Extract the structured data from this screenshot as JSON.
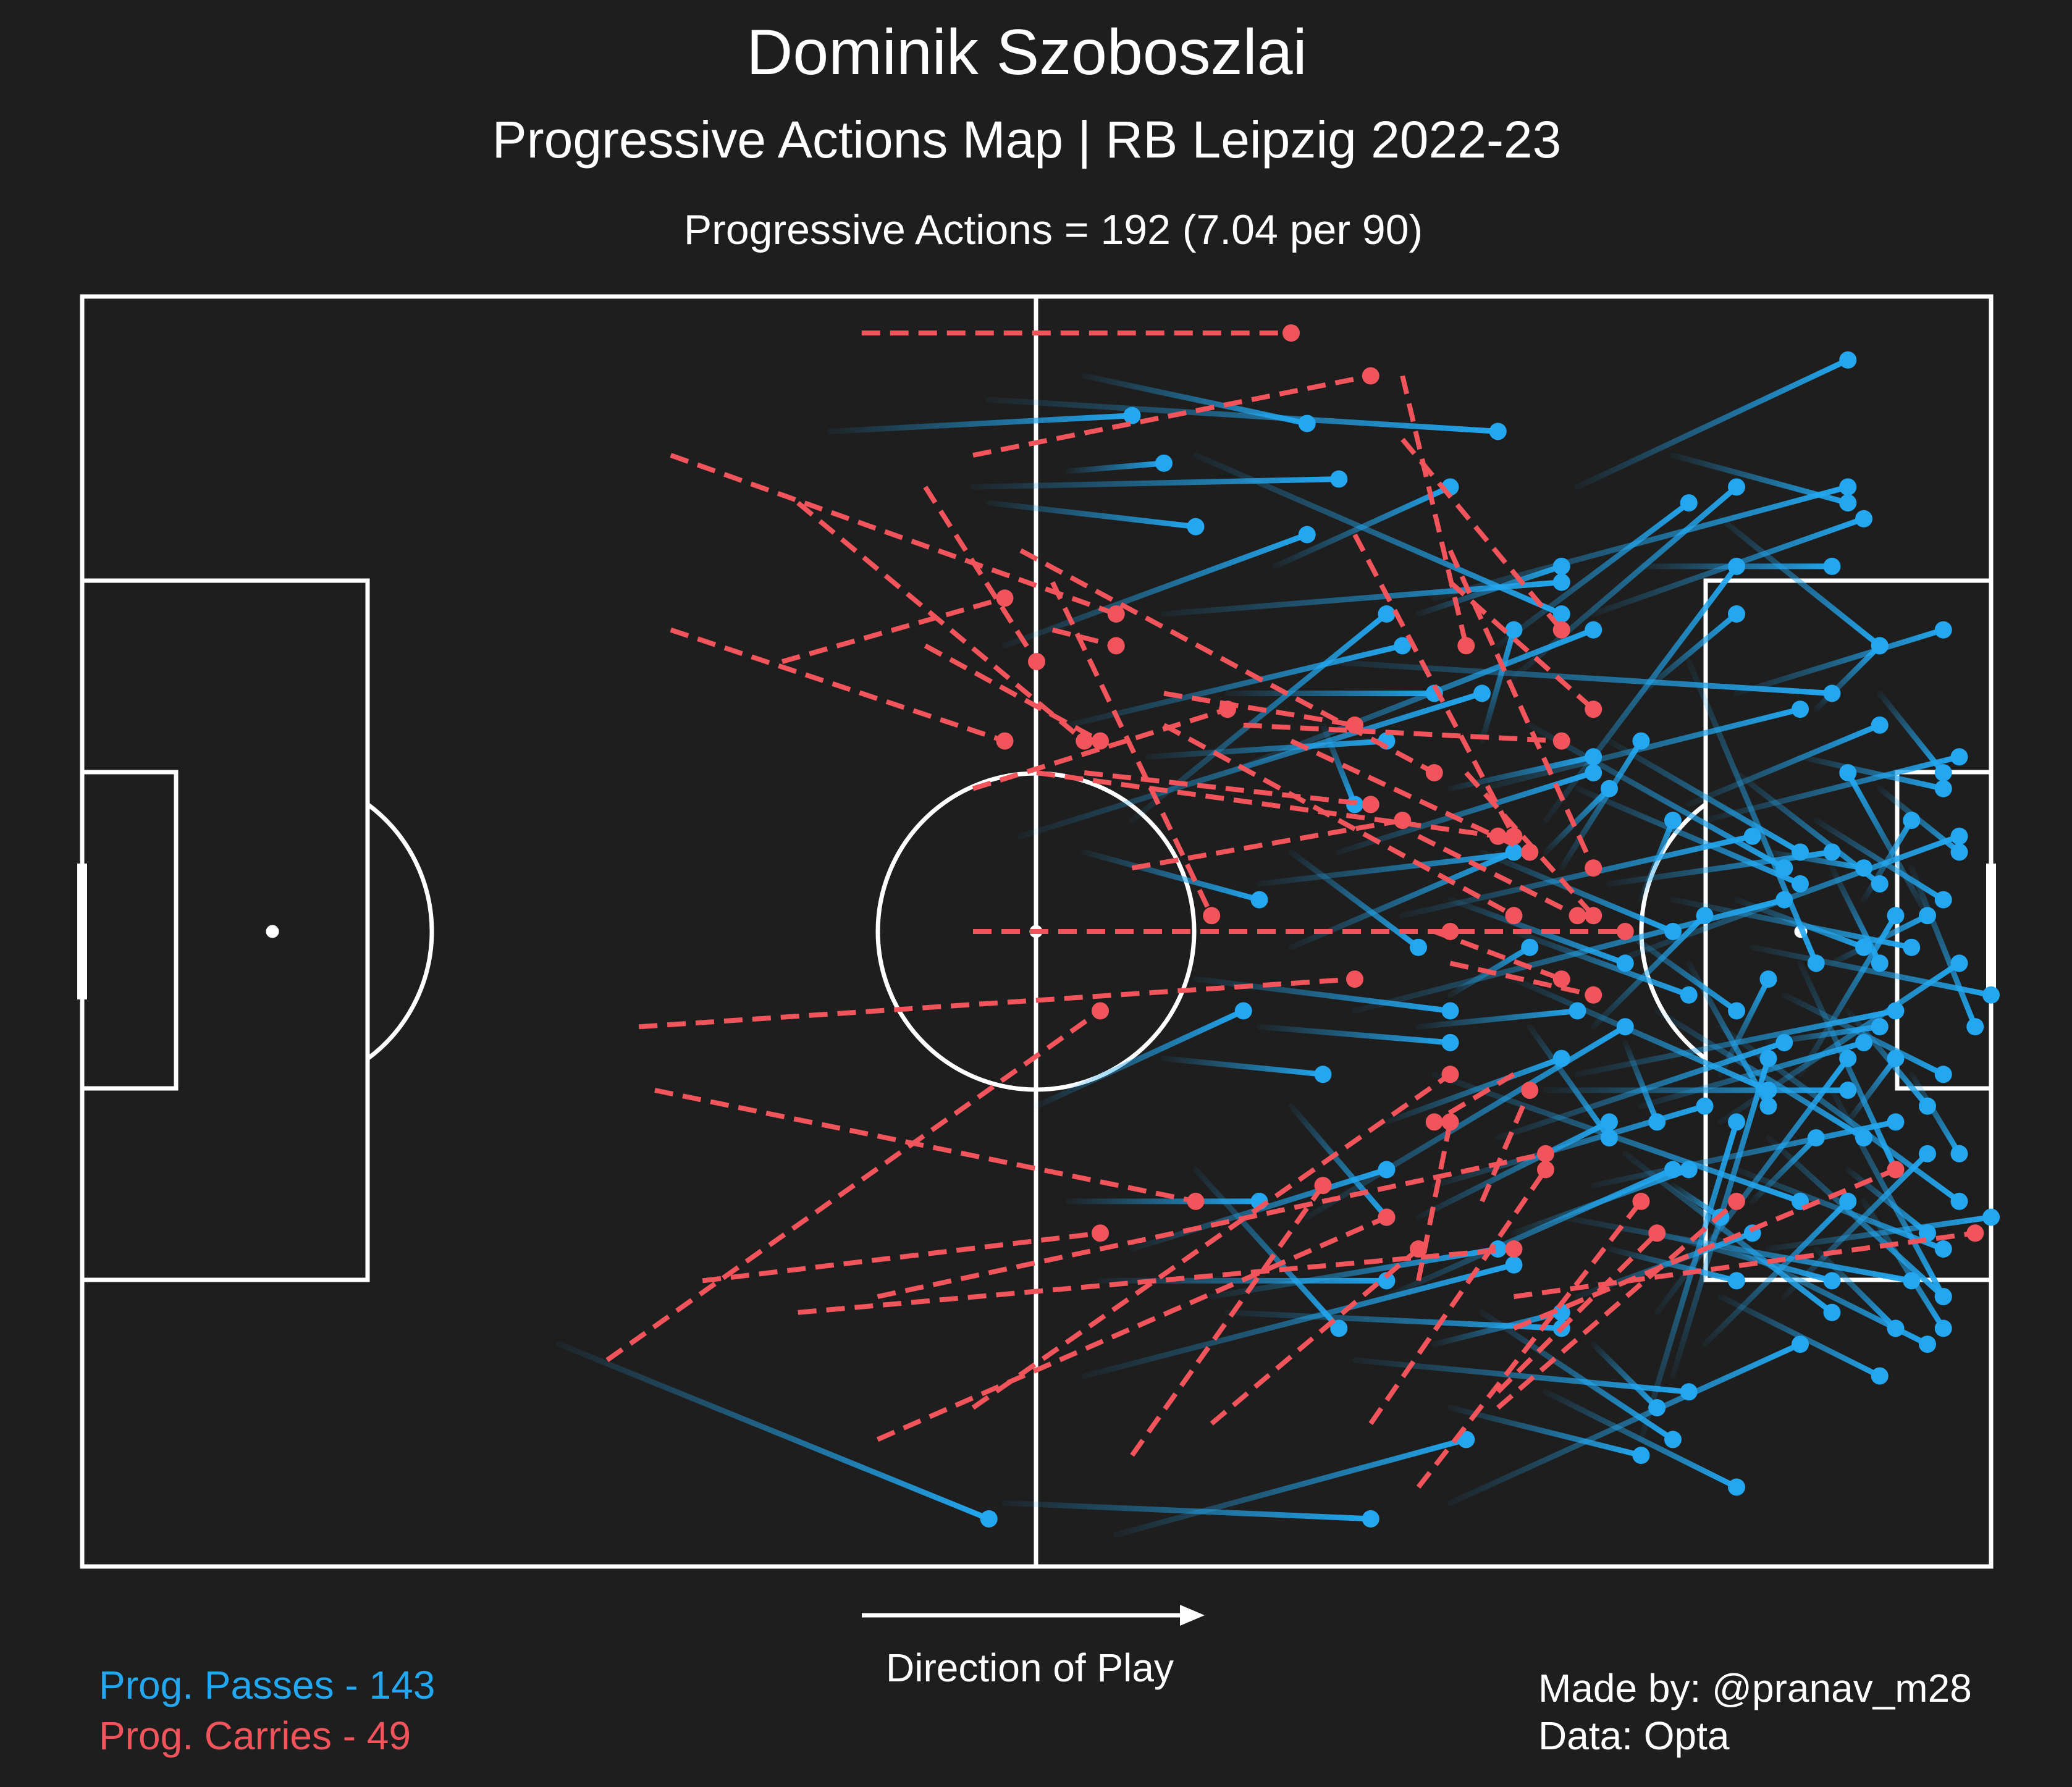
{
  "header": {
    "title": "Dominik Szoboszlai",
    "subtitle": "Progressive Actions Map | RB Leipzig 2022-23",
    "summary": "Progressive Actions = 192 (7.04 per 90)"
  },
  "direction_label": "Direction of Play",
  "legend": {
    "passes_label": "Prog. Passes - 143",
    "carries_label": "Prog. Carries - 49"
  },
  "credits": {
    "made_by": "Made by: @pranav_m28",
    "data_source": "Data: Opta"
  },
  "colors": {
    "background": "#1e1e1e",
    "lines": "#ffffff",
    "pass": "#22a7f0",
    "carry": "#f2545b"
  },
  "chart_data": {
    "type": "scatter",
    "description_axes": "pitch coordinates, x 0-120 (attacking direction left to right), y 0-80",
    "xlim": [
      0,
      120
    ],
    "ylim": [
      0,
      80
    ],
    "series": [
      {
        "name": "Prog. Passes - 143",
        "kind": "pass",
        "actions": [
          [
            57,
            6.5,
            89,
            8.5
          ],
          [
            47,
            8.5,
            66,
            7.5
          ],
          [
            62,
            11,
            68,
            10.5
          ],
          [
            56,
            12,
            79,
            11.5
          ],
          [
            63,
            5,
            77,
            8
          ],
          [
            57,
            13,
            70,
            14.5
          ],
          [
            68,
            20,
            93,
            18
          ],
          [
            70,
            10,
            93,
            20
          ],
          [
            58,
            22,
            77,
            15
          ],
          [
            62,
            27,
            83,
            22
          ],
          [
            66,
            33,
            82,
            20
          ],
          [
            72,
            30,
            95,
            21
          ],
          [
            78,
            23,
            110,
            25
          ],
          [
            85,
            19,
            111,
            12
          ],
          [
            94,
            12,
            111,
            4
          ],
          [
            92,
            33,
            104,
            17
          ],
          [
            98,
            25,
            104,
            20
          ],
          [
            79,
            35,
            95,
            30
          ],
          [
            83,
            39,
            105,
            34
          ],
          [
            88,
            31,
            108,
            26
          ],
          [
            74,
            37,
            91,
            35
          ],
          [
            80,
            45,
            107,
            38
          ],
          [
            96,
            42,
            118,
            34
          ],
          [
            101,
            32,
            113,
            27
          ],
          [
            104,
            25,
            117,
            21
          ],
          [
            59,
            34,
            88,
            25
          ],
          [
            90,
            43,
            106,
            50
          ],
          [
            98,
            51,
            112,
            47
          ],
          [
            100,
            38,
            115,
            41
          ],
          [
            105,
            41,
            120,
            44
          ],
          [
            95,
            56,
            114,
            52
          ],
          [
            103,
            46,
            118,
            57
          ],
          [
            106,
            53,
            117,
            63
          ],
          [
            85,
            49,
            108,
            57
          ],
          [
            93,
            58,
            115,
            62
          ],
          [
            106,
            60,
            120,
            58
          ],
          [
            110,
            50,
            117,
            63
          ],
          [
            99,
            64,
            111,
            48
          ],
          [
            98,
            72,
            104,
            52
          ],
          [
            82,
            63,
            100,
            55
          ],
          [
            77,
            58,
            97,
            46
          ],
          [
            72,
            64,
            93,
            65
          ],
          [
            65,
            78,
            87,
            72
          ],
          [
            86,
            76,
            108,
            66
          ],
          [
            58,
            76,
            81,
            77
          ],
          [
            30,
            66,
            57,
            77
          ],
          [
            63,
            68,
            90,
            61
          ],
          [
            88,
            64,
            100,
            72
          ],
          [
            97,
            54,
            110,
            64
          ],
          [
            102,
            59,
            116,
            66
          ],
          [
            112,
            57,
            117,
            65
          ],
          [
            108,
            49,
            114,
            39
          ],
          [
            109,
            33,
            117,
            38
          ],
          [
            116,
            39,
            111,
            30
          ],
          [
            113,
            25,
            117,
            30
          ],
          [
            101,
            23,
            109,
            42
          ],
          [
            96,
            28,
            108,
            35
          ],
          [
            88,
            35,
            100,
            40
          ],
          [
            84,
            46,
            94,
            45
          ],
          [
            76,
            51,
            82,
            58
          ],
          [
            70,
            55,
            79,
            65
          ],
          [
            64,
            62,
            82,
            62
          ],
          [
            74,
            46,
            86,
            47
          ],
          [
            91,
            46,
            96,
            53
          ],
          [
            93,
            36,
            98,
            28
          ],
          [
            111,
            45,
            116,
            51
          ],
          [
            111,
            55,
            116,
            59
          ],
          [
            108,
            42,
            114,
            55
          ],
          [
            115,
            36,
            119,
            46
          ],
          [
            99,
            45,
            112,
            53
          ],
          [
            91,
            27,
            107,
            36
          ],
          [
            95,
            20,
            112,
            14
          ],
          [
            90,
            24,
            104,
            12
          ],
          [
            86,
            38,
            97,
            42
          ],
          [
            94,
            63,
            105,
            59
          ],
          [
            100,
            68,
            106,
            48
          ],
          [
            102,
            66,
            111,
            57
          ],
          [
            103,
            52,
            118,
            42
          ],
          [
            107,
            44,
            117,
            49
          ],
          [
            104,
            38,
            112,
            41
          ],
          [
            108,
            29,
            117,
            31
          ],
          [
            110,
            36,
            113,
            42
          ],
          [
            97,
            40,
            104,
            45
          ],
          [
            92,
            50,
            111,
            50
          ],
          [
            85,
            56,
            102,
            51
          ],
          [
            70,
            43,
            86,
            45
          ],
          [
            60,
            51,
            73,
            45
          ],
          [
            67,
            29,
            82,
            28
          ],
          [
            75,
            17,
            86,
            12
          ],
          [
            98,
            17,
            110,
            17
          ],
          [
            103,
            14,
            113,
            22
          ],
          [
            100,
            10,
            111,
            13
          ],
          [
            89,
            22,
            101,
            13
          ],
          [
            96,
            37,
            110,
            35
          ],
          [
            102,
            33,
            118,
            29
          ],
          [
            109,
            26,
            113,
            22
          ],
          [
            106,
            35,
            112,
            36
          ],
          [
            113,
            31,
            118,
            35
          ],
          [
            115,
            49,
            118,
            54
          ],
          [
            107,
            63,
            116,
            54
          ],
          [
            86,
            70,
            98,
            73
          ],
          [
            92,
            69,
            104,
            75
          ],
          [
            80,
            67,
            101,
            69
          ],
          [
            71,
            63,
            89,
            60
          ],
          [
            66,
            60,
            82,
            55
          ],
          [
            84,
            58,
            96,
            52
          ],
          [
            89,
            53,
            107,
            47
          ],
          [
            94,
            49,
            114,
            45
          ],
          [
            99,
            59,
            110,
            62
          ],
          [
            104,
            55,
            117,
            60
          ],
          [
            94,
            31,
            108,
            37
          ],
          [
            90,
            40,
            101,
            44
          ],
          [
            86,
            31,
            95,
            29
          ],
          [
            84,
            20,
            93,
            17
          ],
          [
            72,
            25,
            85,
            25
          ],
          [
            63,
            35,
            74,
            38
          ],
          [
            76,
            41,
            90,
            35
          ],
          [
            82,
            52,
            93,
            48
          ],
          [
            90,
            59,
            101,
            55
          ],
          [
            95,
            46,
            102,
            39
          ],
          [
            101,
            42,
            106,
            51
          ],
          [
            106,
            47,
            113,
            46
          ],
          [
            110,
            42,
            116,
            39
          ],
          [
            104,
            30,
            113,
            37
          ],
          [
            96,
            60,
            104,
            62
          ],
          [
            103,
            63,
            113,
            68
          ],
          [
            109,
            60,
            114,
            65
          ],
          [
            111,
            52,
            114,
            48
          ],
          [
            112,
            38,
            115,
            33
          ],
          [
            98,
            38,
            100,
            33
          ],
          [
            88,
            28,
            90,
            21
          ],
          [
            78,
            27,
            80,
            32
          ],
          [
            76,
            35,
            84,
            41
          ],
          [
            68,
            48,
            78,
            49
          ],
          [
            62,
            57,
            74,
            57
          ],
          [
            86,
            44,
            91,
            41
          ],
          [
            92,
            35,
            96,
            31
          ],
          [
            97,
            47,
            99,
            52
          ],
          [
            100,
            56,
            103,
            58
          ],
          [
            105,
            57,
            109,
            53
          ],
          [
            103,
            49,
            106,
            43
          ],
          [
            95,
            66,
            99,
            70
          ],
          [
            85,
            66,
            93,
            64
          ]
        ]
      },
      {
        "name": "Prog. Carries - 49",
        "kind": "carry",
        "actions": [
          [
            49,
            2.3,
            76,
            2.3
          ],
          [
            56,
            10,
            81,
            5
          ],
          [
            37,
            10,
            65,
            20
          ],
          [
            45,
            13,
            63,
            28
          ],
          [
            53,
            12,
            60,
            23
          ],
          [
            59,
            16,
            85,
            30
          ],
          [
            61,
            18,
            71,
            39
          ],
          [
            37,
            21,
            58,
            28
          ],
          [
            44,
            23,
            58,
            19
          ],
          [
            61,
            21,
            65,
            22
          ],
          [
            68,
            25,
            80,
            27
          ],
          [
            73,
            27,
            93,
            28
          ],
          [
            83,
            5,
            87,
            22
          ],
          [
            83,
            9,
            93,
            21
          ],
          [
            80,
            15,
            90,
            34
          ],
          [
            86,
            18,
            95,
            26
          ],
          [
            86,
            16,
            95,
            36
          ],
          [
            87,
            30,
            95,
            39
          ],
          [
            68,
            27,
            90,
            39
          ],
          [
            63,
            30,
            81,
            32
          ],
          [
            66,
            36,
            83,
            33
          ],
          [
            56,
            40,
            86,
            40
          ],
          [
            35,
            46,
            80,
            43
          ],
          [
            36,
            50,
            70,
            57
          ],
          [
            39,
            62,
            64,
            59
          ],
          [
            45,
            64,
            90,
            60
          ],
          [
            33,
            67,
            64,
            45
          ],
          [
            50,
            63,
            92,
            54
          ],
          [
            50,
            72,
            82,
            58
          ],
          [
            56,
            70,
            86,
            49
          ],
          [
            56,
            40,
            97,
            40
          ],
          [
            71,
            71,
            84,
            60
          ],
          [
            66,
            73,
            78,
            56
          ],
          [
            81,
            71,
            92,
            55
          ],
          [
            84,
            75,
            98,
            57
          ],
          [
            89,
            70,
            104,
            57
          ],
          [
            90,
            65,
            114,
            55
          ],
          [
            90,
            63,
            119,
            59
          ],
          [
            89,
            69,
            99,
            59
          ],
          [
            90,
            49,
            85,
            52
          ],
          [
            88,
            57,
            91,
            50
          ],
          [
            84,
            62,
            86,
            52
          ],
          [
            85,
            40,
            93,
            43
          ],
          [
            84,
            34,
            94,
            39
          ],
          [
            86,
            42,
            95,
            44
          ],
          [
            53,
            22,
            64,
            28
          ],
          [
            60,
            30,
            89,
            34
          ],
          [
            56,
            31,
            72,
            26
          ],
          [
            76,
            28,
            91,
            35
          ]
        ]
      }
    ]
  }
}
